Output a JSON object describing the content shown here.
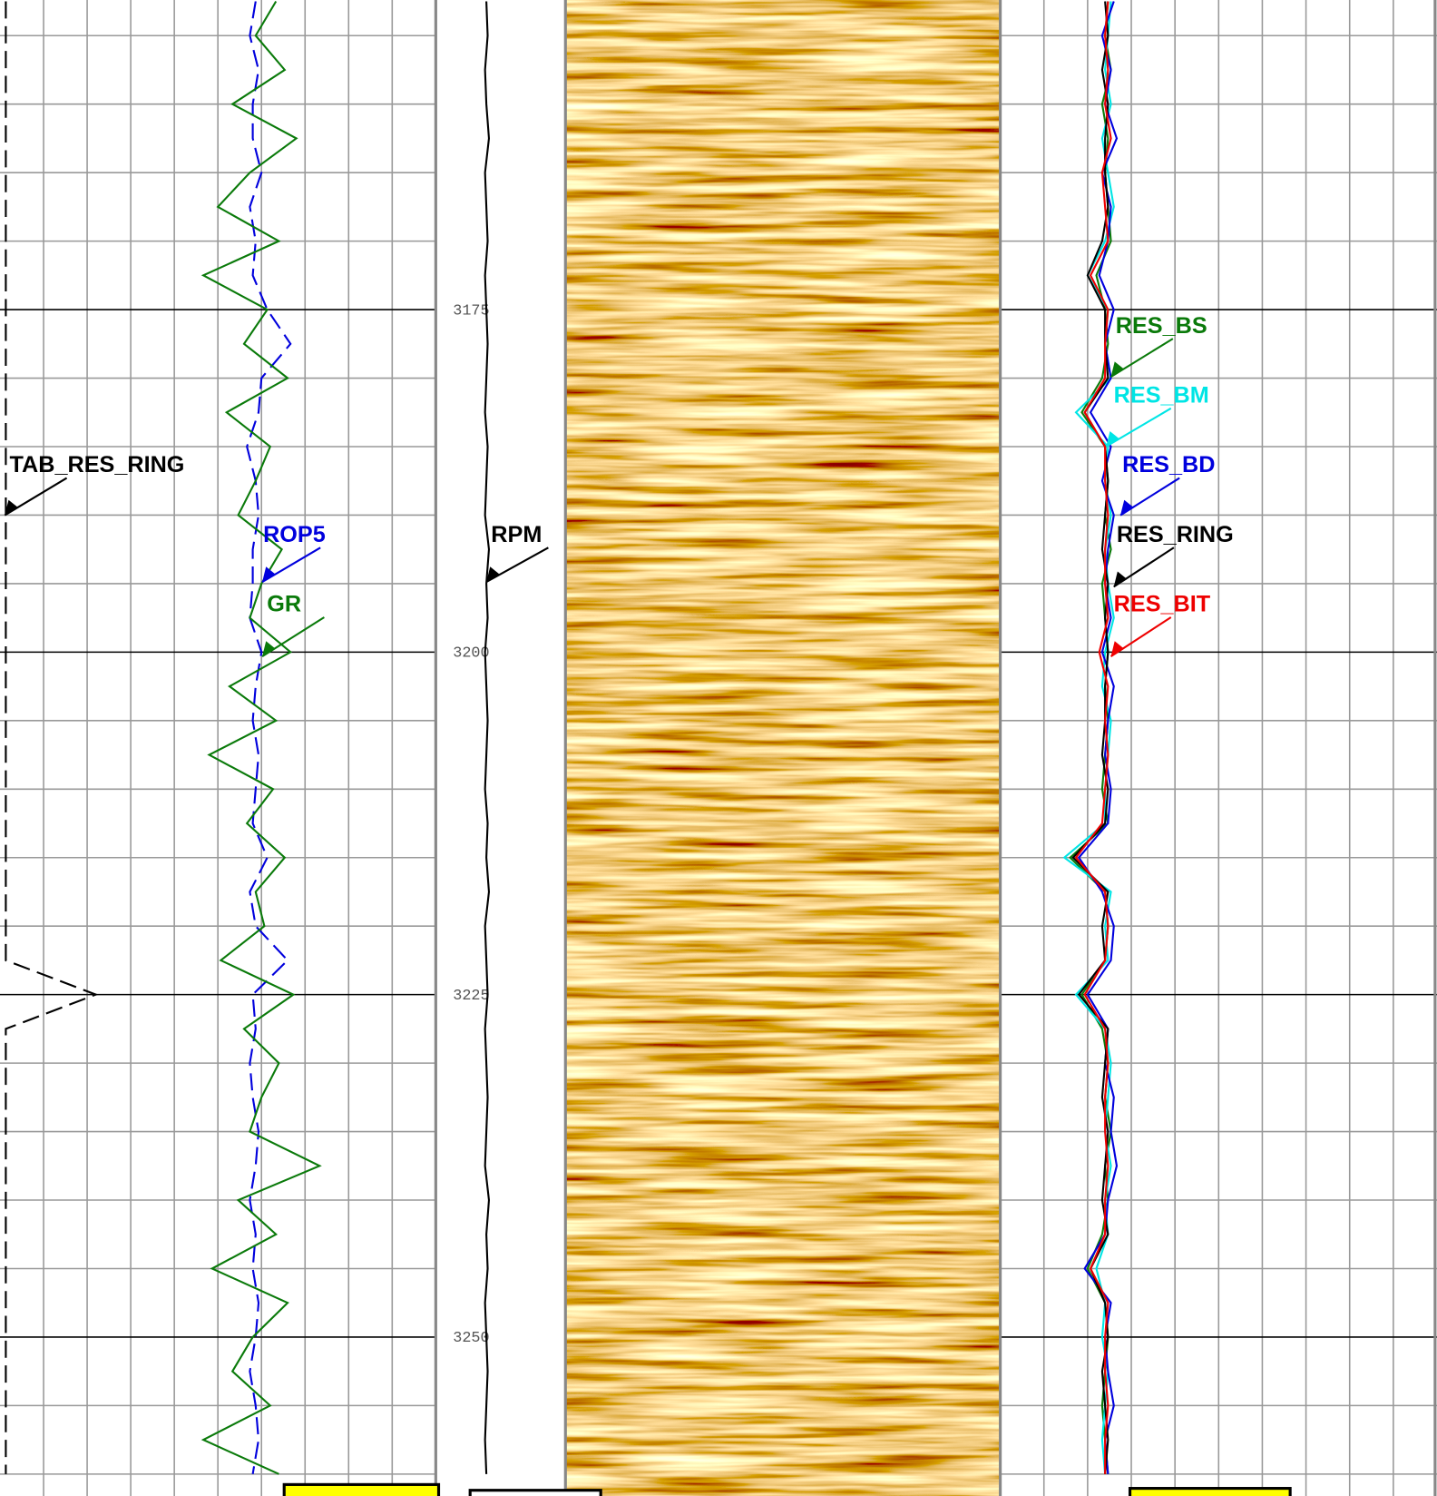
{
  "chart_data": {
    "type": "well-log",
    "ylim": [
      3152.4,
      3261.6
    ],
    "yticks": [
      3175,
      3200,
      3225,
      3250
    ],
    "depth": [
      3152.5,
      3155,
      3157.5,
      3160,
      3162.5,
      3165,
      3167.5,
      3170,
      3172.5,
      3175,
      3177.5,
      3180,
      3182.5,
      3185,
      3187.5,
      3190,
      3192.5,
      3195,
      3197.5,
      3200,
      3202.5,
      3205,
      3207.5,
      3210,
      3212.5,
      3215,
      3217.5,
      3220,
      3222.5,
      3225,
      3227.5,
      3230,
      3232.5,
      3235,
      3237.5,
      3240,
      3242.5,
      3245,
      3247.5,
      3250,
      3252.5,
      3255,
      3257.5,
      3260
    ],
    "tracks": [
      {
        "xlim": [
          0,
          150
        ],
        "grid": true,
        "series": [
          {
            "name": "TAB_RES_RING",
            "color": "#000000",
            "dash": true,
            "values": [
              2,
              2,
              2,
              2,
              2,
              2,
              2,
              2,
              2,
              2,
              2,
              2,
              2,
              2,
              2,
              2,
              2,
              2,
              2,
              2,
              2,
              2,
              2,
              2,
              2,
              2,
              2,
              2,
              2,
              33,
              2,
              2,
              2,
              2,
              2,
              2,
              2,
              2,
              2,
              2,
              2,
              2,
              2,
              2
            ]
          },
          {
            "name": "ROP5",
            "color": "#0000dd",
            "dash": true,
            "values": [
              88,
              86,
              89,
              87,
              87,
              90,
              86,
              88,
              87,
              92,
              100,
              90,
              89,
              85,
              88,
              89,
              87,
              87,
              86,
              90,
              88,
              87,
              89,
              88,
              87,
              92,
              86,
              88,
              99,
              87,
              88,
              86,
              87,
              89,
              88,
              86,
              88,
              87,
              89,
              88,
              86,
              88,
              89,
              87
            ]
          },
          {
            "name": "GR",
            "color": "#0a7a0a",
            "dash": false,
            "values": [
              95,
              88,
              98,
              80,
              102,
              86,
              75,
              96,
              70,
              92,
              84,
              99,
              78,
              93,
              88,
              82,
              97,
              90,
              86,
              100,
              79,
              95,
              72,
              94,
              85,
              98,
              88,
              91,
              76,
              101,
              84,
              96,
              90,
              86,
              110,
              82,
              95,
              73,
              99,
              87,
              80,
              93,
              70,
              96
            ]
          }
        ]
      },
      {
        "xlim": [
          0,
          100
        ],
        "grid": false,
        "series": [
          {
            "name": "RPM",
            "color": "#000000",
            "dash": false,
            "values": [
              39,
              40,
              38,
              39,
              41,
              38,
              39,
              40,
              38,
              39,
              40,
              39,
              38,
              40,
              39,
              38,
              41,
              39,
              40,
              38,
              39,
              40,
              39,
              38,
              40,
              39,
              41,
              38,
              39,
              40,
              38,
              39,
              40,
              39,
              38,
              41,
              39,
              40,
              38,
              39,
              40,
              39,
              38,
              39
            ]
          }
        ]
      },
      {
        "xlim": [
          0,
          150
        ],
        "grid": true,
        "series": [
          {
            "name": "RES_BS",
            "color": "#0a7a0a",
            "dash": false,
            "values": [
              37,
              36,
              38,
              35,
              37,
              36,
              37,
              38,
              33,
              36,
              37,
              35,
              28,
              36,
              37,
              36,
              38,
              35,
              36,
              37,
              36,
              37,
              36,
              35,
              37,
              24,
              36,
              37,
              36,
              28,
              35,
              37,
              36,
              38,
              36,
              37,
              35,
              30,
              36,
              37,
              36,
              35,
              36,
              37
            ]
          },
          {
            "name": "RES_BM",
            "color": "#00e5e5",
            "dash": false,
            "values": [
              38,
              37,
              36,
              38,
              35,
              37,
              39,
              36,
              30,
              37,
              36,
              38,
              26,
              37,
              36,
              38,
              36,
              37,
              39,
              36,
              35,
              38,
              37,
              36,
              36,
              22,
              38,
              36,
              37,
              26,
              36,
              38,
              37,
              36,
              38,
              36,
              37,
              33,
              36,
              35,
              37,
              36,
              35,
              36
            ]
          },
          {
            "name": "RES_BD",
            "color": "#0000dd",
            "dash": false,
            "values": [
              39,
              35,
              38,
              36,
              40,
              35,
              38,
              37,
              34,
              39,
              36,
              38,
              31,
              38,
              35,
              39,
              37,
              36,
              38,
              35,
              39,
              37,
              36,
              38,
              37,
              27,
              35,
              39,
              38,
              30,
              37,
              36,
              39,
              38,
              40,
              37,
              36,
              29,
              38,
              36,
              37,
              39,
              36,
              37
            ]
          },
          {
            "name": "RES_RING",
            "color": "#000000",
            "dash": false,
            "values": [
              36,
              37,
              35,
              37,
              36,
              36,
              37,
              35,
              30,
              36,
              36,
              37,
              29,
              36,
              37,
              36,
              35,
              37,
              36,
              37,
              36,
              36,
              35,
              37,
              36,
              25,
              37,
              35,
              36,
              27,
              37,
              36,
              35,
              37,
              36,
              35,
              37,
              31,
              36,
              37,
              35,
              36,
              37,
              36
            ]
          },
          {
            "name": "RES_BIT",
            "color": "#ee0000",
            "dash": false,
            "values": [
              37,
              36,
              37,
              36,
              38,
              35,
              36,
              37,
              31,
              37,
              36,
              36,
              29,
              36,
              36,
              37,
              36,
              36,
              37,
              34,
              37,
              36,
              37,
              36,
              35,
              26,
              36,
              37,
              36,
              29,
              36,
              37,
              36,
              36,
              37,
              36,
              36,
              31,
              37,
              36,
              36,
              37,
              36,
              36
            ]
          }
        ]
      }
    ]
  }
}
